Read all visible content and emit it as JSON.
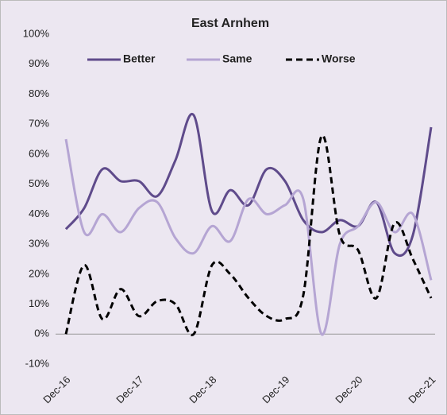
{
  "chart_data": {
    "type": "line",
    "title": "East Arnhem",
    "categories": [
      "Dec-16",
      null,
      null,
      null,
      "Dec-17",
      null,
      null,
      null,
      "Dec-18",
      null,
      null,
      null,
      "Dec-19",
      null,
      null,
      null,
      "Dec-20",
      null,
      null,
      null,
      "Dec-21"
    ],
    "series": [
      {
        "name": "Better",
        "color": "#5f4b8b",
        "dash": false,
        "values": [
          35,
          42,
          55,
          51,
          51,
          46,
          58,
          73,
          41,
          48,
          43,
          55,
          51,
          38,
          34,
          38,
          36,
          44,
          27,
          33,
          69
        ]
      },
      {
        "name": "Same",
        "color": "#b5a5d3",
        "dash": false,
        "values": [
          65,
          34,
          40,
          34,
          42,
          44,
          32,
          27,
          36,
          31,
          45,
          40,
          43,
          45,
          0,
          30,
          36,
          44,
          34,
          40,
          18
        ]
      },
      {
        "name": "Worse",
        "color": "#000000",
        "dash": true,
        "values": [
          0,
          23,
          5,
          15,
          6,
          11,
          10,
          0,
          23,
          20,
          12,
          6,
          5,
          13,
          66,
          33,
          28,
          12,
          37,
          25,
          12
        ]
      }
    ],
    "ylim": [
      -10,
      100
    ],
    "yticks": [
      {
        "value": -10,
        "label": "-10%"
      },
      {
        "value": 0,
        "label": "0%"
      },
      {
        "value": 10,
        "label": "10%"
      },
      {
        "value": 20,
        "label": "20%"
      },
      {
        "value": 30,
        "label": "30%"
      },
      {
        "value": 40,
        "label": "40%"
      },
      {
        "value": 50,
        "label": "50%"
      },
      {
        "value": 60,
        "label": "60%"
      },
      {
        "value": 70,
        "label": "70%"
      },
      {
        "value": 80,
        "label": "80%"
      },
      {
        "value": 90,
        "label": "90%"
      },
      {
        "value": 100,
        "label": "100%"
      }
    ],
    "legend": "top"
  }
}
